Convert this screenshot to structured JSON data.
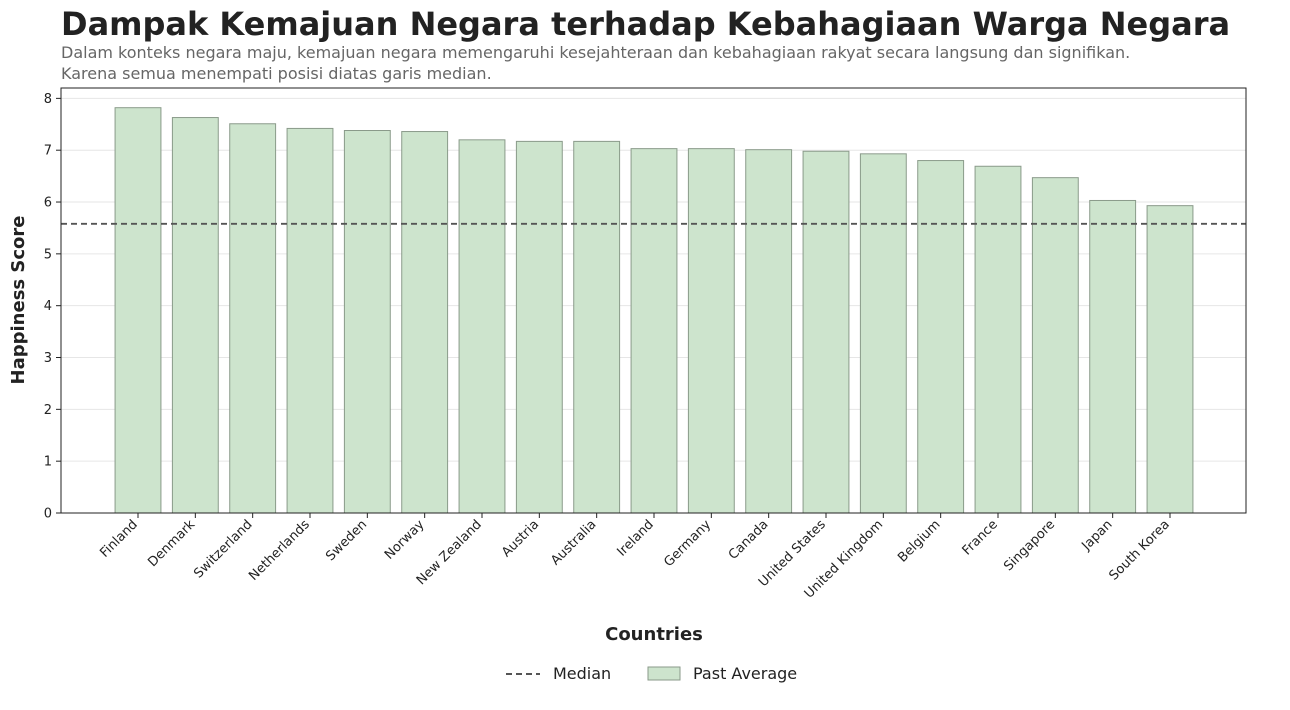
{
  "chart_data": {
    "type": "bar",
    "title": "Dampak Kemajuan Negara terhadap Kebahagiaan Warga Negara",
    "subtitle": [
      "Dalam konteks negara maju, kemajuan negara memengaruhi kesejahteraan dan kebahagiaan rakyat secara langsung dan signifikan.",
      "Karena semua menempati posisi diatas garis median."
    ],
    "xlabel": "Countries",
    "ylabel": "Happiness Score",
    "ylim": [
      0,
      8.2
    ],
    "yticks": [
      0,
      1,
      2,
      3,
      4,
      5,
      6,
      7,
      8
    ],
    "grid": true,
    "legend_position": "bottom-center",
    "categories": [
      "Finland",
      "Denmark",
      "Switzerland",
      "Netherlands",
      "Sweden",
      "Norway",
      "New Zealand",
      "Austria",
      "Australia",
      "Ireland",
      "Germany",
      "Canada",
      "United States",
      "United Kingdom",
      "Belgium",
      "France",
      "Singapore",
      "Japan",
      "South Korea"
    ],
    "series": [
      {
        "name": "Past Average",
        "values": [
          7.82,
          7.63,
          7.51,
          7.42,
          7.38,
          7.36,
          7.2,
          7.17,
          7.17,
          7.03,
          7.03,
          7.01,
          6.98,
          6.93,
          6.8,
          6.69,
          6.47,
          6.03,
          5.93
        ],
        "color": "#cde4cd",
        "edge_color": "#8a9a8a"
      }
    ],
    "median": {
      "name": "Median",
      "value": 5.58,
      "color": "#555555",
      "style": "dashed"
    }
  }
}
